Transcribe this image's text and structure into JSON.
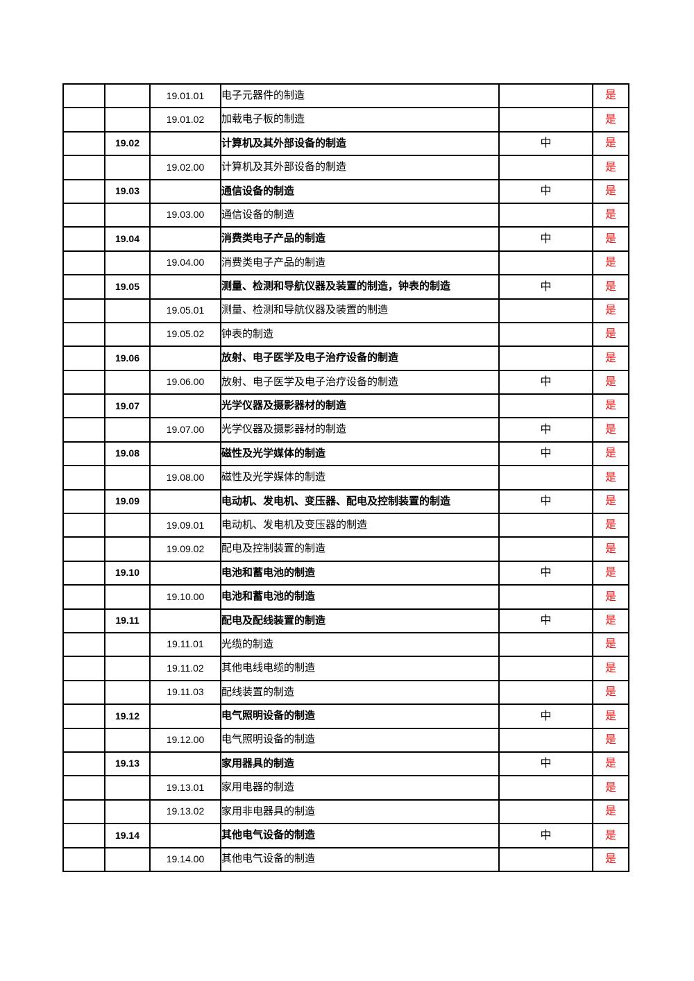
{
  "page": {
    "background_color": "#ffffff"
  },
  "table": {
    "border_color": "#000000",
    "text_color": "#000000",
    "flag_color": "#ee1111",
    "rows": [
      {
        "code_l1": "",
        "code_l2": "19.01.01",
        "description": "电子元器件的制造",
        "level": "",
        "flag": "是",
        "style": "child"
      },
      {
        "code_l1": "",
        "code_l2": "19.01.02",
        "description": "加载电子板的制造",
        "level": "",
        "flag": "是",
        "style": "child"
      },
      {
        "code_l1": "19.02",
        "code_l2": "",
        "description": "计算机及其外部设备的制造",
        "level": "中",
        "flag": "是",
        "style": "parent"
      },
      {
        "code_l1": "",
        "code_l2": "19.02.00",
        "description": "计算机及其外部设备的制造",
        "level": "",
        "flag": "是",
        "style": "child"
      },
      {
        "code_l1": "19.03",
        "code_l2": "",
        "description": "通信设备的制造",
        "level": "中",
        "flag": "是",
        "style": "parent"
      },
      {
        "code_l1": "",
        "code_l2": "19.03.00",
        "description": "通信设备的制造",
        "level": "",
        "flag": "是",
        "style": "child"
      },
      {
        "code_l1": "19.04",
        "code_l2": "",
        "description": "消费类电子产品的制造",
        "level": "中",
        "flag": "是",
        "style": "parent"
      },
      {
        "code_l1": "",
        "code_l2": "19.04.00",
        "description": "消费类电子产品的制造",
        "level": "",
        "flag": "是",
        "style": "child"
      },
      {
        "code_l1": "19.05",
        "code_l2": "",
        "description": "测量、检测和导航仪器及装置的制造，钟表的制造",
        "level": "中",
        "flag": "是",
        "style": "parent"
      },
      {
        "code_l1": "",
        "code_l2": "19.05.01",
        "description": "测量、检测和导航仪器及装置的制造",
        "level": "",
        "flag": "是",
        "style": "child"
      },
      {
        "code_l1": "",
        "code_l2": "19.05.02",
        "description": "钟表的制造",
        "level": "",
        "flag": "是",
        "style": "child"
      },
      {
        "code_l1": "19.06",
        "code_l2": "",
        "description": "放射、电子医学及电子治疗设备的制造",
        "level": "",
        "flag": "是",
        "style": "parent"
      },
      {
        "code_l1": "",
        "code_l2": "19.06.00",
        "description": "放射、电子医学及电子治疗设备的制造",
        "level": "中",
        "flag": "是",
        "style": "child"
      },
      {
        "code_l1": "19.07",
        "code_l2": "",
        "description": "光学仪器及摄影器材的制造",
        "level": "",
        "flag": "是",
        "style": "parent"
      },
      {
        "code_l1": "",
        "code_l2": "19.07.00",
        "description": "光学仪器及摄影器材的制造",
        "level": "中",
        "flag": "是",
        "style": "child"
      },
      {
        "code_l1": "19.08",
        "code_l2": "",
        "description": "磁性及光学媒体的制造",
        "level": "中",
        "flag": "是",
        "style": "parent"
      },
      {
        "code_l1": "",
        "code_l2": "19.08.00",
        "description": "磁性及光学媒体的制造",
        "level": "",
        "flag": "是",
        "style": "child"
      },
      {
        "code_l1": "19.09",
        "code_l2": "",
        "description": "电动机、发电机、变压器、配电及控制装置的制造",
        "level": "中",
        "flag": "是",
        "style": "parent"
      },
      {
        "code_l1": "",
        "code_l2": "19.09.01",
        "description": "电动机、发电机及变压器的制造",
        "level": "",
        "flag": "是",
        "style": "child"
      },
      {
        "code_l1": "",
        "code_l2": "19.09.02",
        "description": "配电及控制装置的制造",
        "level": "",
        "flag": "是",
        "style": "child"
      },
      {
        "code_l1": "19.10",
        "code_l2": "",
        "description": "电池和蓄电池的制造",
        "level": "中",
        "flag": "是",
        "style": "parent"
      },
      {
        "code_l1": "",
        "code_l2": "19.10.00",
        "description": "电池和蓄电池的制造",
        "level": "",
        "flag": "是",
        "style": "child-bold-desc"
      },
      {
        "code_l1": "19.11",
        "code_l2": "",
        "description": "配电及配线装置的制造",
        "level": "中",
        "flag": "是",
        "style": "parent"
      },
      {
        "code_l1": "",
        "code_l2": "19.11.01",
        "description": "光缆的制造",
        "level": "",
        "flag": "是",
        "style": "child"
      },
      {
        "code_l1": "",
        "code_l2": "19.11.02",
        "description": "其他电线电缆的制造",
        "level": "",
        "flag": "是",
        "style": "child"
      },
      {
        "code_l1": "",
        "code_l2": "19.11.03",
        "description": "配线装置的制造",
        "level": "",
        "flag": "是",
        "style": "child"
      },
      {
        "code_l1": "19.12",
        "code_l2": "",
        "description": "电气照明设备的制造",
        "level": "中",
        "flag": "是",
        "style": "parent"
      },
      {
        "code_l1": "",
        "code_l2": "19.12.00",
        "description": "电气照明设备的制造",
        "level": "",
        "flag": "是",
        "style": "child"
      },
      {
        "code_l1": "19.13",
        "code_l2": "",
        "description": "家用器具的制造",
        "level": "中",
        "flag": "是",
        "style": "parent"
      },
      {
        "code_l1": "",
        "code_l2": "19.13.01",
        "description": "家用电器的制造",
        "level": "",
        "flag": "是",
        "style": "child"
      },
      {
        "code_l1": "",
        "code_l2": "19.13.02",
        "description": "家用非电器具的制造",
        "level": "",
        "flag": "是",
        "style": "child"
      },
      {
        "code_l1": "19.14",
        "code_l2": "",
        "description": "其他电气设备的制造",
        "level": "中",
        "flag": "是",
        "style": "parent"
      },
      {
        "code_l1": "",
        "code_l2": "19.14.00",
        "description": "其他电气设备的制造",
        "level": "",
        "flag": "是",
        "style": "child"
      }
    ]
  }
}
